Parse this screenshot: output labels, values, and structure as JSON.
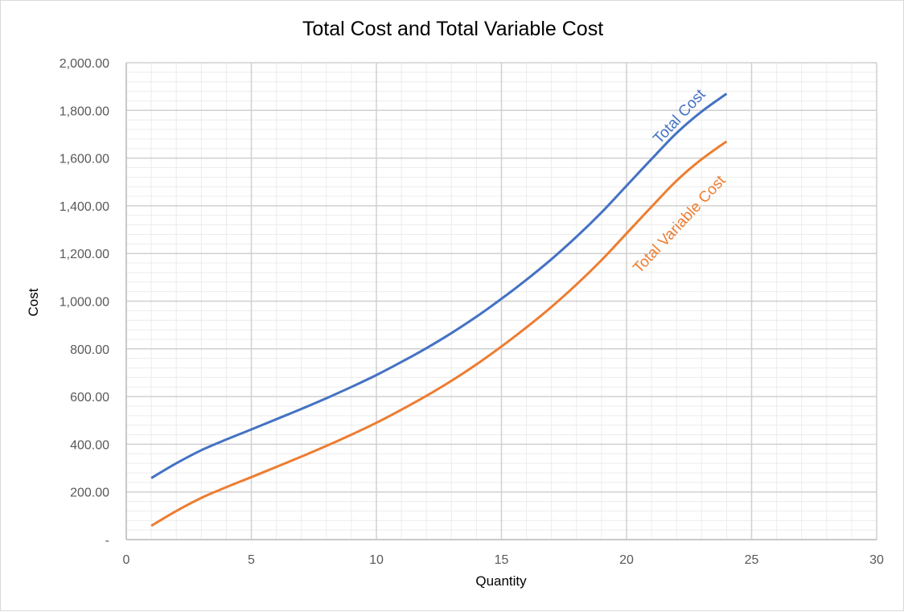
{
  "chart_data": {
    "type": "line",
    "title": "Total Cost and Total Variable Cost",
    "xlabel": "Quantity",
    "ylabel": "Cost",
    "xlim": [
      0,
      30
    ],
    "ylim": [
      0,
      2000
    ],
    "x_ticks": [
      0,
      5,
      10,
      15,
      20,
      25,
      30
    ],
    "x_tick_labels": [
      "0",
      "5",
      "10",
      "15",
      "20",
      "25",
      "30"
    ],
    "y_ticks": [
      0,
      200,
      400,
      600,
      800,
      1000,
      1200,
      1400,
      1600,
      1800,
      2000
    ],
    "y_tick_labels": [
      "-",
      "200.00",
      "400.00",
      "600.00",
      "800.00",
      "1,000.00",
      "1,200.00",
      "1,400.00",
      "1,600.00",
      "1,800.00",
      "2,000.00"
    ],
    "grid": true,
    "legend": "none",
    "series": [
      {
        "name": "Total Cost",
        "color": "#4472c4",
        "x": [
          1,
          2,
          3,
          4,
          5,
          6,
          7,
          8,
          9,
          10,
          11,
          12,
          13,
          14,
          15,
          16,
          17,
          18,
          19,
          20,
          21,
          22,
          23,
          24
        ],
        "values": [
          258,
          320,
          375,
          420,
          462,
          505,
          548,
          593,
          640,
          690,
          745,
          803,
          866,
          935,
          1010,
          1090,
          1176,
          1270,
          1372,
          1484,
          1596,
          1705,
          1795,
          1870
        ]
      },
      {
        "name": "Total Variable Cost",
        "color": "#ed7d31",
        "x": [
          1,
          2,
          3,
          4,
          5,
          6,
          7,
          8,
          9,
          10,
          11,
          12,
          13,
          14,
          15,
          16,
          17,
          18,
          19,
          20,
          21,
          22,
          23,
          24
        ],
        "values": [
          58,
          120,
          175,
          220,
          262,
          305,
          348,
          393,
          440,
          490,
          545,
          603,
          666,
          735,
          810,
          890,
          976,
          1070,
          1172,
          1284,
          1396,
          1505,
          1595,
          1670
        ]
      }
    ]
  }
}
